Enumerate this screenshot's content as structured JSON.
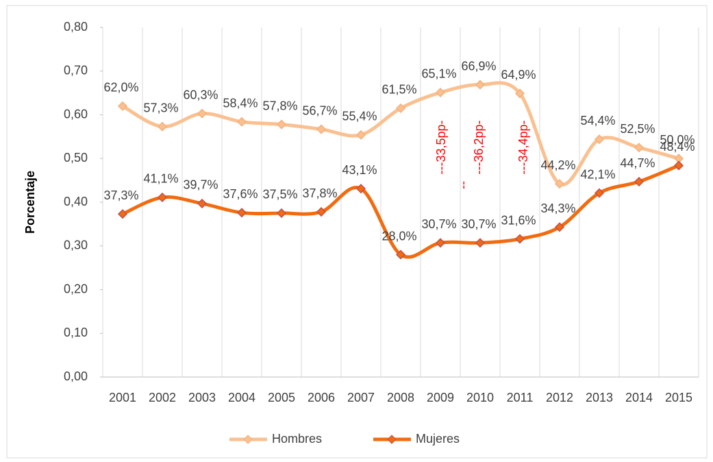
{
  "chart_data": {
    "type": "line",
    "y_label": "Porcentaje",
    "categories": [
      "2001",
      "2002",
      "2003",
      "2004",
      "2005",
      "2006",
      "2007",
      "2008",
      "2009",
      "2010",
      "2011",
      "2012",
      "2013",
      "2014",
      "2015"
    ],
    "series": [
      {
        "name": "Hombres",
        "color": "#fac090",
        "marker_edge": "#f5b07a",
        "values": [
          0.62,
          0.573,
          0.603,
          0.584,
          0.578,
          0.567,
          0.554,
          0.615,
          0.651,
          0.669,
          0.649,
          0.442,
          0.544,
          0.525,
          0.5
        ],
        "value_labels": [
          "62,0%",
          "57,3%",
          "60,3%",
          "58,4%",
          "57,8%",
          "56,7%",
          "55,4%",
          "61,5%",
          "65,1%",
          "66,9%",
          "64,9%",
          "44,2%",
          "54,4%",
          "52,5%",
          "50,0%"
        ]
      },
      {
        "name": "Mujeres",
        "color": "#f26b0f",
        "marker_edge": "#c0504d",
        "values": [
          0.373,
          0.411,
          0.397,
          0.376,
          0.375,
          0.378,
          0.431,
          0.28,
          0.307,
          0.307,
          0.316,
          0.343,
          0.421,
          0.447,
          0.484
        ],
        "value_labels": [
          "37,3%",
          "41,1%",
          "39,7%",
          "37,6%",
          "37,5%",
          "37,8%",
          "43,1%",
          "28,0%",
          "30,7%",
          "30,7%",
          "31,6%",
          "34,3%",
          "42,1%",
          "44,7%",
          "48,4%"
        ]
      }
    ],
    "annotations": [
      "---33,5pp-",
      "---36,2pp-",
      "---34,4pp-",
      "--"
    ],
    "annotation_color": "#ff0000",
    "ylim": [
      0,
      0.8
    ],
    "yticks": [
      {
        "value": 0,
        "label": "0,00"
      },
      {
        "value": 0.1,
        "label": "0,10"
      },
      {
        "value": 0.2,
        "label": "0,20"
      },
      {
        "value": 0.3,
        "label": "0,30"
      },
      {
        "value": 0.4,
        "label": "0,40"
      },
      {
        "value": 0.5,
        "label": "0,50"
      },
      {
        "value": 0.6,
        "label": "0,60"
      },
      {
        "value": 0.7,
        "label": "0,70"
      },
      {
        "value": 0.8,
        "label": "0,80"
      }
    ],
    "grid": "x",
    "legend": "bottom"
  }
}
